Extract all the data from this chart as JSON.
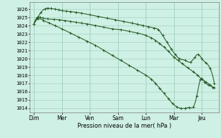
{
  "xlabel": "Pression niveau de la mer( hPa )",
  "ylim": [
    1013.5,
    1026.8
  ],
  "yticks": [
    1014,
    1015,
    1016,
    1017,
    1018,
    1019,
    1020,
    1021,
    1022,
    1023,
    1024,
    1025,
    1026
  ],
  "xtick_labels": [
    "Dim",
    "Mer",
    "Ven",
    "Sam",
    "Lun",
    "Mar",
    "Jeu"
  ],
  "xtick_positions": [
    0,
    1,
    2,
    3,
    4,
    5,
    6
  ],
  "xlim": [
    -0.15,
    6.6
  ],
  "background_color": "#cff0e4",
  "grid_color": "#99ccbb",
  "line_color": "#2a5e2a",
  "figsize": [
    3.2,
    2.0
  ],
  "dpi": 100,
  "line1_pts_x": [
    0.0,
    0.12,
    0.22,
    0.32,
    0.5,
    0.7,
    0.9,
    1.1,
    1.3,
    1.5,
    1.7,
    1.9,
    2.2,
    2.5,
    2.8,
    3.1,
    3.4,
    3.7,
    4.0,
    4.2,
    4.35,
    4.5,
    4.65,
    4.8,
    5.0,
    5.15,
    5.3,
    5.5,
    5.7,
    5.85,
    6.0,
    6.15,
    6.3,
    6.45
  ],
  "line1_pts_y": [
    1024.2,
    1025.0,
    1025.0,
    1024.9,
    1024.8,
    1024.75,
    1024.7,
    1024.6,
    1024.5,
    1024.4,
    1024.3,
    1024.2,
    1024.0,
    1023.8,
    1023.6,
    1023.5,
    1023.3,
    1023.1,
    1022.8,
    1022.5,
    1022.2,
    1021.8,
    1021.4,
    1020.9,
    1020.2,
    1019.8,
    1019.4,
    1018.9,
    1018.4,
    1018.0,
    1017.5,
    1017.2,
    1016.8,
    1016.5
  ],
  "line2_pts_x": [
    0.0,
    0.12,
    0.25,
    0.38,
    0.5,
    0.62,
    0.75,
    0.88,
    1.0,
    1.15,
    1.3,
    1.5,
    1.7,
    2.0,
    2.3,
    2.6,
    2.9,
    3.2,
    3.5,
    3.7,
    3.9,
    4.1,
    4.3,
    4.45,
    4.6,
    4.75,
    4.9,
    5.05,
    5.2,
    5.4,
    5.6,
    5.75,
    5.88,
    6.0,
    6.15,
    6.3,
    6.45
  ],
  "line2_pts_y": [
    1024.2,
    1024.9,
    1025.6,
    1026.0,
    1026.1,
    1026.05,
    1026.0,
    1025.9,
    1025.8,
    1025.75,
    1025.7,
    1025.6,
    1025.5,
    1025.3,
    1025.1,
    1024.9,
    1024.7,
    1024.5,
    1024.3,
    1024.15,
    1024.0,
    1023.85,
    1023.7,
    1023.5,
    1022.8,
    1022.0,
    1021.2,
    1020.5,
    1020.0,
    1019.8,
    1019.6,
    1020.2,
    1020.5,
    1020.0,
    1019.5,
    1018.8,
    1017.0
  ],
  "line3_pts_x": [
    0.0,
    0.15,
    0.35,
    0.55,
    0.75,
    1.0,
    1.3,
    1.6,
    1.9,
    2.2,
    2.5,
    2.8,
    3.1,
    3.4,
    3.7,
    4.0,
    4.2,
    4.35,
    4.5,
    4.65,
    4.8,
    4.95,
    5.1,
    5.25,
    5.4,
    5.55,
    5.7,
    5.82,
    5.95,
    6.1,
    6.25,
    6.4
  ],
  "line3_pts_y": [
    1024.2,
    1024.8,
    1024.6,
    1024.3,
    1024.0,
    1023.6,
    1023.1,
    1022.6,
    1022.1,
    1021.6,
    1021.0,
    1020.4,
    1019.8,
    1019.2,
    1018.6,
    1018.0,
    1017.5,
    1017.0,
    1016.4,
    1015.8,
    1015.2,
    1014.6,
    1014.2,
    1014.0,
    1014.0,
    1014.1,
    1014.2,
    1015.5,
    1017.5,
    1017.2,
    1016.8,
    1016.5
  ]
}
